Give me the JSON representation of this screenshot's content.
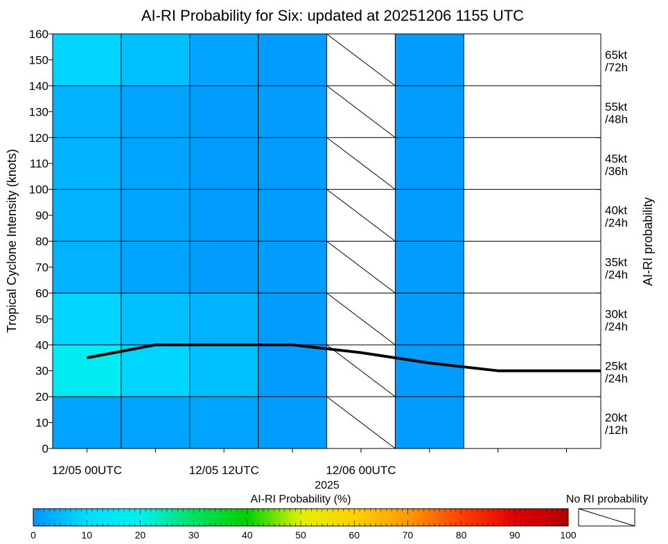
{
  "chart_data": {
    "type": "heatmap",
    "title": "AI-RI Probability for Six: updated at 20251206 1155 UTC",
    "ylabel": "Tropical Cyclone Intensity (knots)",
    "right_label": "AI-RI probability",
    "xlabel": "2025",
    "ylim": [
      0,
      160
    ],
    "y_ticks": [
      0,
      10,
      20,
      30,
      40,
      50,
      60,
      70,
      80,
      90,
      100,
      110,
      120,
      130,
      140,
      150,
      160
    ],
    "x_tick_labels": [
      "12/05 00UTC",
      "12/05 12UTC",
      "12/06 00UTC"
    ],
    "x_ticks_hours": [
      0,
      6,
      12,
      18,
      24,
      30,
      36,
      42
    ],
    "x_range_hours": [
      -3,
      45
    ],
    "columns_hours": [
      [
        -3,
        3
      ],
      [
        3,
        9
      ],
      [
        9,
        15
      ],
      [
        15,
        21
      ],
      [
        21,
        27
      ],
      [
        27,
        33
      ]
    ],
    "intensity_bands": [
      [
        0,
        20
      ],
      [
        20,
        40
      ],
      [
        40,
        60
      ],
      [
        60,
        80
      ],
      [
        80,
        100
      ],
      [
        100,
        120
      ],
      [
        120,
        140
      ],
      [
        140,
        160
      ]
    ],
    "probabilities": [
      [
        2,
        2,
        2,
        1,
        null,
        1
      ],
      [
        18,
        9,
        6,
        1,
        null,
        1
      ],
      [
        9,
        6,
        4,
        1,
        null,
        1
      ],
      [
        4,
        2,
        1,
        1,
        null,
        1
      ],
      [
        4,
        2,
        1,
        1,
        null,
        1
      ],
      [
        4,
        2,
        1,
        1,
        null,
        1
      ],
      [
        4,
        2,
        1,
        1,
        null,
        1
      ],
      [
        9,
        6,
        2,
        1,
        null,
        1
      ]
    ],
    "no_ri_columns": [
      4
    ],
    "intensity_line": {
      "x_hours": [
        0,
        6,
        12,
        18,
        24,
        30,
        36,
        42,
        45
      ],
      "y_knots": [
        35,
        40,
        40,
        40,
        37,
        33,
        30,
        30,
        30
      ]
    },
    "thresholds": [
      {
        "kt": "20kt",
        "h": "/12h"
      },
      {
        "kt": "25kt",
        "h": "/24h"
      },
      {
        "kt": "30kt",
        "h": "/24h"
      },
      {
        "kt": "35kt",
        "h": "/24h"
      },
      {
        "kt": "40kt",
        "h": "/24h"
      },
      {
        "kt": "45kt",
        "h": "/36h"
      },
      {
        "kt": "55kt",
        "h": "/48h"
      },
      {
        "kt": "65kt",
        "h": "/72h"
      }
    ],
    "colorbar": {
      "label": "AI-RI Probability (%)",
      "ticks": [
        0,
        10,
        20,
        30,
        40,
        50,
        60,
        70,
        80,
        90,
        100
      ],
      "stops": [
        "#0096ff",
        "#00dcff",
        "#00f0f0",
        "#00e060",
        "#00d000",
        "#e0f000",
        "#ffd000",
        "#ff9a00",
        "#ff4000",
        "#e00000",
        "#b40000"
      ]
    },
    "no_ri_label": "No RI probability",
    "colors": {
      "line": "#000000",
      "grid": "#000000",
      "no_ri_fill": "#ffffff"
    }
  }
}
